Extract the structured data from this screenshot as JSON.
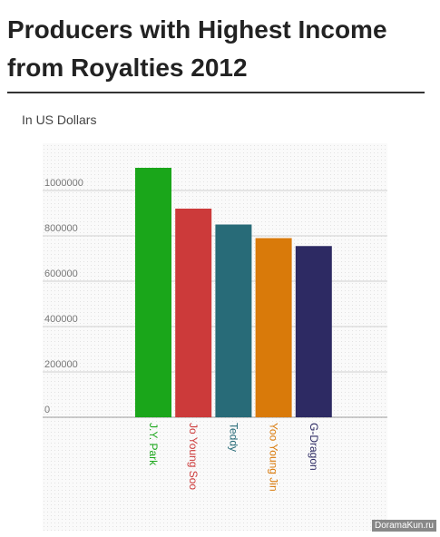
{
  "chart_data": {
    "type": "bar",
    "title": "Producers with Highest Income from Royalties 2012",
    "subtitle": "In US Dollars",
    "categories": [
      "J.Y. Park",
      "Jo Young Soo",
      "Teddy",
      "Yoo Young Jin",
      "G-Dragon"
    ],
    "values": [
      1100000,
      920000,
      850000,
      790000,
      755000
    ],
    "colors": [
      "#1aa61a",
      "#cc3a3a",
      "#286b78",
      "#d97a0a",
      "#2d2a63"
    ],
    "ylim": [
      0,
      1200000
    ],
    "yticks": [
      0,
      200000,
      400000,
      600000,
      800000,
      1000000
    ],
    "grid": true,
    "watermark": "DoramaKun.ru"
  }
}
